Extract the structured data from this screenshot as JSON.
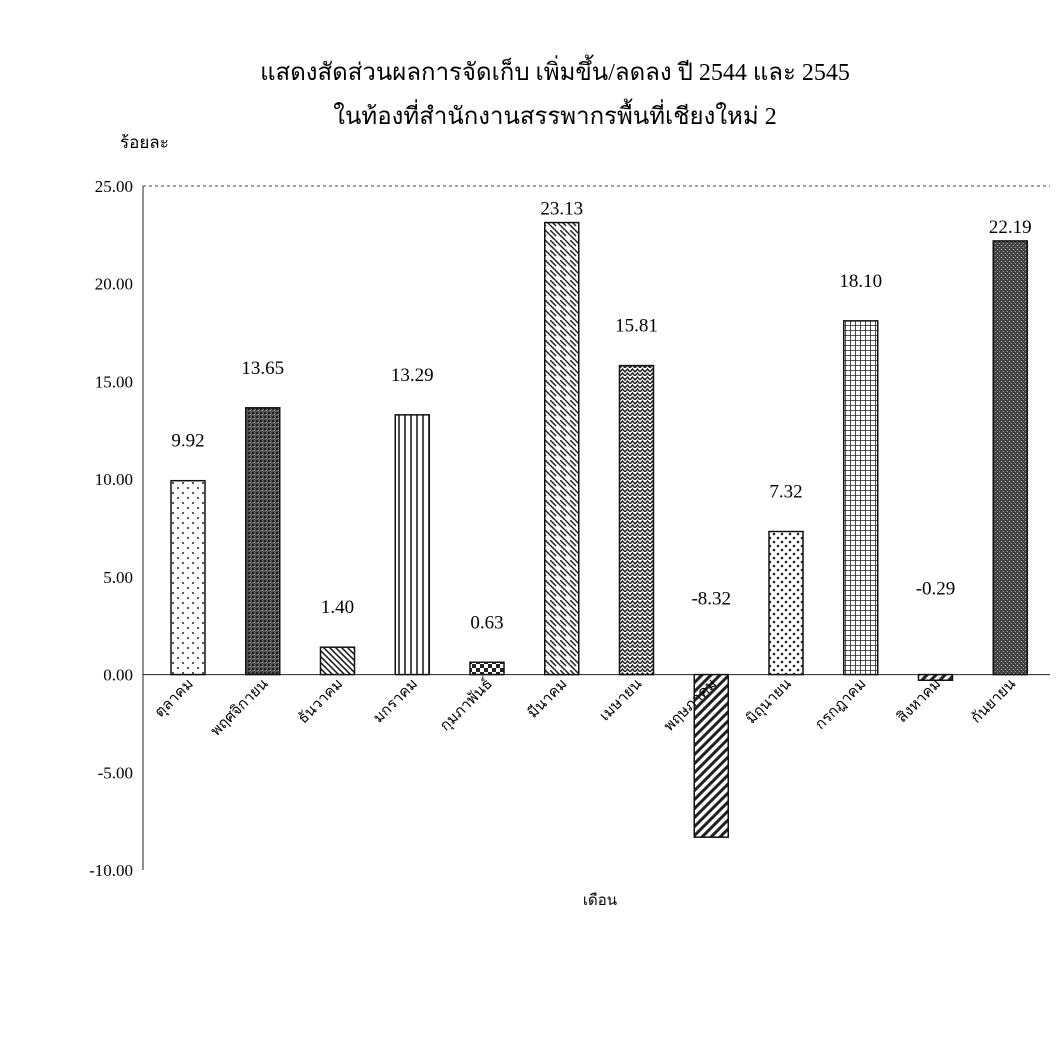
{
  "chart_data": {
    "type": "bar",
    "title": "แสดงสัดส่วนผลการจัดเก็บ เพิ่มขึ้น/ลดลง ปี 2544 และ 2545",
    "subtitle": "ในท้องที่สำนักงานสรรพากรพื้นที่เชียงใหม่ 2",
    "ylabel": "ร้อยละ",
    "xlabel": "เดือน",
    "ylim": [
      -10,
      25
    ],
    "yticks": [
      "25.00",
      "20.00",
      "15.00",
      "10.00",
      "5.00",
      "0.00",
      "-5.00",
      "-10.00"
    ],
    "ytick_values": [
      25,
      20,
      15,
      10,
      5,
      0,
      -5,
      -10
    ],
    "categories": [
      "ตุลาคม",
      "พฤศจิกายน",
      "ธันวาคม",
      "มกราคม",
      "กุมภาพันธ์",
      "มีนาคม",
      "เมษายน",
      "พฤษภาคม",
      "มิถุนายน",
      "กรกฎาคม",
      "สิงหาคม",
      "กันยายน"
    ],
    "values": [
      9.92,
      13.65,
      1.4,
      13.29,
      0.63,
      23.13,
      15.81,
      -8.32,
      7.32,
      18.1,
      -0.29,
      22.19
    ],
    "value_labels": [
      "9.92",
      "13.65",
      "1.40",
      "13.29",
      "0.63",
      "23.13",
      "15.81",
      "-8.32",
      "7.32",
      "18.10",
      "-0.29",
      "22.19"
    ],
    "patterns": [
      "dots",
      "dark-stipple",
      "diag-down",
      "vertical",
      "checker",
      "diag-dash",
      "wave",
      "diag-up",
      "dots-large",
      "grid",
      "diag-up",
      "dark-cross"
    ],
    "legend": "none",
    "grid": false
  }
}
